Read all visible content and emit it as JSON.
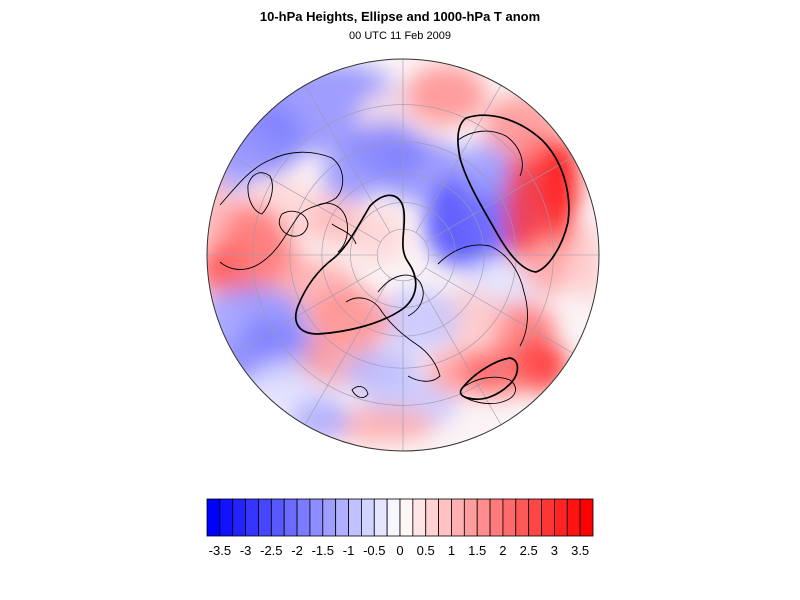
{
  "title": "10-hPa Heights, Ellipse and 1000-hPa T anom",
  "subtitle": "00 UTC 11 Feb 2009",
  "projection": "polar-stereographic-north",
  "colors": {
    "cold_max": "#0000ff",
    "neutral": "#ffffff",
    "warm_max": "#ff0000",
    "contour": "#000000",
    "coastline": "#000000",
    "grid": "#9a9ab0"
  },
  "colorbar": {
    "min": -3.75,
    "max": 3.75,
    "step": 0.25,
    "tick_labels": [
      "-3.5",
      "-3",
      "-2.5",
      "-2",
      "-1.5",
      "-1",
      "-0.5",
      "0",
      "0.5",
      "1",
      "1.5",
      "2",
      "2.5",
      "3",
      "3.5"
    ]
  }
}
